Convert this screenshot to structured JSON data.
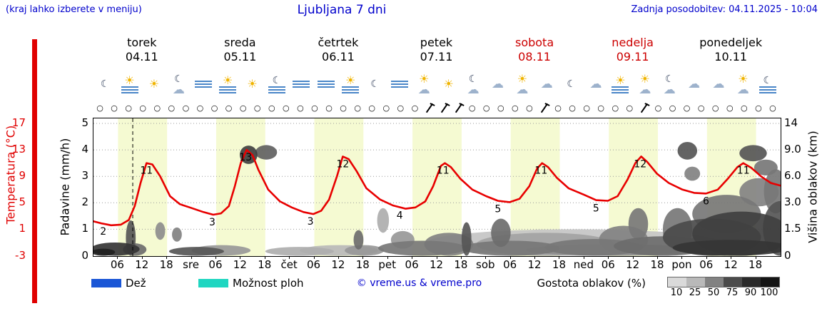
{
  "header": {
    "hint": "(kraj lahko izberete v meniju)",
    "title": "Ljubljana 7 dni",
    "updated": "Zadnja posodobitev: 04.11.2025 - 10:04"
  },
  "colors": {
    "accent_blue": "#0000cc",
    "red": "#cc0000",
    "temp_line": "#e80000",
    "day_band": "#f5fad2",
    "rain_legend": "#1a56d6",
    "showers_legend": "#1fd6c1"
  },
  "axes": {
    "temp_label": "Temperatura (°C)",
    "precip_label": "Padavine (mm/h)",
    "cloud_label": "Višina oblakov (km)",
    "temp_ticks": [
      "17",
      "13",
      "9",
      "5",
      "1",
      "-3"
    ],
    "precip_ticks": [
      "5",
      "4",
      "3",
      "2",
      "1",
      "0"
    ],
    "cloud_ticks": [
      "14",
      "9.0",
      "6.0",
      "3.0",
      "1.5",
      "0"
    ]
  },
  "days": [
    {
      "name": "torek",
      "date": "04.11",
      "highlight": false
    },
    {
      "name": "sreda",
      "date": "05.11",
      "highlight": false
    },
    {
      "name": "četrtek",
      "date": "06.11",
      "highlight": false
    },
    {
      "name": "petek",
      "date": "07.11",
      "highlight": false
    },
    {
      "name": "sobota",
      "date": "08.11",
      "highlight": true
    },
    {
      "name": "nedelja",
      "date": "09.11",
      "highlight": true
    },
    {
      "name": "ponedeljek",
      "date": "10.11",
      "highlight": false
    }
  ],
  "icons": [
    "moon",
    "fog-sun",
    "sun",
    "moon-cloud",
    "fog",
    "fog-sun",
    "sun",
    "fog-moon",
    "fog",
    "fog",
    "fog-sun",
    "moon",
    "fog",
    "cloud-sun",
    "sun",
    "moon-cloud",
    "cloud",
    "cloud-sun",
    "cloud",
    "moon",
    "cloud",
    "fog-sun",
    "sun-cloud",
    "moon-cloud",
    "cloud",
    "cloud",
    "cloud-sun",
    "fog-moon"
  ],
  "wind": {
    "count": 48,
    "barb_indices": [
      23,
      24,
      25,
      31,
      38
    ]
  },
  "x_axis": {
    "hour_labels": [
      "06",
      "12",
      "18"
    ],
    "boundary_labels": [
      "sre",
      "čet",
      "pet",
      "sob",
      "ned",
      "pon"
    ]
  },
  "legend": {
    "rain": "Dež",
    "showers": "Možnost ploh",
    "copyright": "© vreme.us & vreme.pro",
    "cloud_density": "Gostota oblakov (%)",
    "density_ticks": [
      "10",
      "25",
      "50",
      "75",
      "90",
      "100"
    ]
  },
  "chart_data": {
    "type": "line",
    "title": "Ljubljana 7 dni",
    "x_axis_unit": "days from 04.11 00:00, 7 days, ticks at 06/12/18 each day",
    "y_left_temperature": {
      "label": "Temperatura (°C)",
      "ticks": [
        17,
        13,
        9,
        5,
        1,
        -3
      ],
      "degC_per_gridline": 4
    },
    "y_left_precipitation": {
      "label": "Padavine (mm/h)",
      "ticks": [
        5,
        4,
        3,
        2,
        1,
        0
      ]
    },
    "y_right_cloud_height": {
      "label": "Višina oblakov (km)",
      "ticks": [
        14,
        9.0,
        6.0,
        3.0,
        1.5,
        0
      ],
      "km_scale": [
        0,
        1.5,
        3,
        6,
        9,
        14
      ]
    },
    "now_marker_day": 0.4,
    "daylight_band_hours": [
      6,
      18
    ],
    "temperature_series": {
      "name": "Temperatura",
      "color": "#e80000",
      "points": [
        [
          0,
          2.2
        ],
        [
          0.08,
          1.9
        ],
        [
          0.18,
          1.6
        ],
        [
          0.28,
          1.7
        ],
        [
          0.36,
          2.4
        ],
        [
          0.42,
          4.5
        ],
        [
          0.48,
          8
        ],
        [
          0.54,
          11
        ],
        [
          0.6,
          10.8
        ],
        [
          0.68,
          9
        ],
        [
          0.78,
          6
        ],
        [
          0.88,
          4.8
        ],
        [
          1,
          4.2
        ],
        [
          1.12,
          3.6
        ],
        [
          1.22,
          3.2
        ],
        [
          1.3,
          3.4
        ],
        [
          1.38,
          4.5
        ],
        [
          1.44,
          7.5
        ],
        [
          1.5,
          11
        ],
        [
          1.56,
          13
        ],
        [
          1.62,
          12.2
        ],
        [
          1.68,
          10
        ],
        [
          1.78,
          7
        ],
        [
          1.9,
          5.2
        ],
        [
          2.02,
          4.3
        ],
        [
          2.14,
          3.6
        ],
        [
          2.24,
          3.3
        ],
        [
          2.32,
          3.8
        ],
        [
          2.4,
          5.5
        ],
        [
          2.48,
          9
        ],
        [
          2.54,
          12
        ],
        [
          2.6,
          11.6
        ],
        [
          2.68,
          9.8
        ],
        [
          2.78,
          7.2
        ],
        [
          2.92,
          5.5
        ],
        [
          3.05,
          4.6
        ],
        [
          3.18,
          4.1
        ],
        [
          3.28,
          4.3
        ],
        [
          3.38,
          5.2
        ],
        [
          3.46,
          7.5
        ],
        [
          3.54,
          10.6
        ],
        [
          3.58,
          11
        ],
        [
          3.64,
          10.4
        ],
        [
          3.74,
          8.6
        ],
        [
          3.86,
          7
        ],
        [
          4,
          6
        ],
        [
          4.12,
          5.3
        ],
        [
          4.24,
          5.1
        ],
        [
          4.34,
          5.6
        ],
        [
          4.44,
          7.5
        ],
        [
          4.52,
          10.2
        ],
        [
          4.57,
          11
        ],
        [
          4.63,
          10.4
        ],
        [
          4.72,
          8.8
        ],
        [
          4.84,
          7.2
        ],
        [
          5,
          6.2
        ],
        [
          5.12,
          5.4
        ],
        [
          5.24,
          5.3
        ],
        [
          5.34,
          6
        ],
        [
          5.44,
          8.5
        ],
        [
          5.52,
          11
        ],
        [
          5.58,
          12
        ],
        [
          5.64,
          11.2
        ],
        [
          5.74,
          9.4
        ],
        [
          5.86,
          8
        ],
        [
          6,
          7
        ],
        [
          6.12,
          6.5
        ],
        [
          6.24,
          6.4
        ],
        [
          6.36,
          7
        ],
        [
          6.46,
          8.6
        ],
        [
          6.56,
          10.4
        ],
        [
          6.62,
          11
        ],
        [
          6.7,
          10.3
        ],
        [
          6.8,
          9
        ],
        [
          6.9,
          8
        ],
        [
          7,
          7.6
        ]
      ]
    },
    "temperature_point_labels": [
      {
        "day": 0.1,
        "t": 1.8,
        "text": "2"
      },
      {
        "day": 0.54,
        "t": 11,
        "text": "11"
      },
      {
        "day": 1.21,
        "t": 3.2,
        "text": "3"
      },
      {
        "day": 1.55,
        "t": 13,
        "text": "13"
      },
      {
        "day": 2.21,
        "t": 3.3,
        "text": "3"
      },
      {
        "day": 2.54,
        "t": 12,
        "text": "12"
      },
      {
        "day": 3.12,
        "t": 4.2,
        "text": "4"
      },
      {
        "day": 3.56,
        "t": 11,
        "text": "11"
      },
      {
        "day": 4.12,
        "t": 5.2,
        "text": "5"
      },
      {
        "day": 4.56,
        "t": 11,
        "text": "11"
      },
      {
        "day": 5.12,
        "t": 5.3,
        "text": "5"
      },
      {
        "day": 5.57,
        "t": 12,
        "text": "12"
      },
      {
        "day": 6.24,
        "t": 6.4,
        "text": "6"
      },
      {
        "day": 6.62,
        "t": 11,
        "text": "11"
      }
    ],
    "cloud_blobs": [
      {
        "day": 0.1,
        "km": 0.15,
        "rday": 0.12,
        "rkm": 0.25,
        "density": 95
      },
      {
        "day": 0.22,
        "km": 0.3,
        "rday": 0.25,
        "rkm": 0.45,
        "density": 85
      },
      {
        "day": 0.38,
        "km": 1.0,
        "rday": 0.05,
        "rkm": 1.0,
        "density": 70
      },
      {
        "day": 0.42,
        "km": 0.3,
        "rday": 0.12,
        "rkm": 0.4,
        "density": 60
      },
      {
        "day": 0.68,
        "km": 1.4,
        "rday": 0.05,
        "rkm": 0.5,
        "density": 45
      },
      {
        "day": 0.85,
        "km": 1.2,
        "rday": 0.05,
        "rkm": 0.4,
        "density": 50
      },
      {
        "day": 1.05,
        "km": 0.2,
        "rday": 0.28,
        "rkm": 0.3,
        "density": 70
      },
      {
        "day": 1.3,
        "km": 0.25,
        "rday": 0.3,
        "rkm": 0.35,
        "density": 40
      },
      {
        "day": 1.58,
        "km": 8.6,
        "rday": 0.09,
        "rkm": 1.2,
        "density": 80
      },
      {
        "day": 1.76,
        "km": 8.9,
        "rday": 0.11,
        "rkm": 1.0,
        "density": 65
      },
      {
        "day": 2.1,
        "km": 0.2,
        "rday": 0.35,
        "rkm": 0.3,
        "density": 30
      },
      {
        "day": 2.5,
        "km": 0.25,
        "rday": 0.4,
        "rkm": 0.35,
        "density": 25
      },
      {
        "day": 2.7,
        "km": 0.9,
        "rday": 0.05,
        "rkm": 0.55,
        "density": 60
      },
      {
        "day": 2.76,
        "km": 0.3,
        "rday": 0.2,
        "rkm": 0.3,
        "density": 40
      },
      {
        "day": 2.95,
        "km": 2.0,
        "rday": 0.06,
        "rkm": 0.7,
        "density": 30
      },
      {
        "day": 3.15,
        "km": 0.9,
        "rday": 0.12,
        "rkm": 0.5,
        "density": 40
      },
      {
        "day": 3.35,
        "km": 0.35,
        "rday": 0.45,
        "rkm": 0.5,
        "density": 55
      },
      {
        "day": 3.62,
        "km": 0.6,
        "rday": 0.25,
        "rkm": 0.7,
        "density": 50
      },
      {
        "day": 3.8,
        "km": 0.9,
        "rday": 0.05,
        "rkm": 1.0,
        "density": 70
      },
      {
        "day": 4.25,
        "km": 0.35,
        "rday": 0.5,
        "rkm": 0.5,
        "density": 55
      },
      {
        "day": 4.15,
        "km": 1.3,
        "rday": 0.1,
        "rkm": 0.8,
        "density": 60
      },
      {
        "day": 4.6,
        "km": 0.6,
        "rday": 0.7,
        "rkm": 0.7,
        "density": 35
      },
      {
        "day": 4.9,
        "km": 0.7,
        "rday": 1.5,
        "rkm": 0.8,
        "density": 20
      },
      {
        "day": 5.1,
        "km": 0.4,
        "rday": 0.5,
        "rkm": 0.55,
        "density": 55
      },
      {
        "day": 5.3,
        "km": 0.25,
        "rday": 0.9,
        "rkm": 0.4,
        "density": 45
      },
      {
        "day": 5.4,
        "km": 0.9,
        "rday": 0.25,
        "rkm": 0.8,
        "density": 50
      },
      {
        "day": 5.55,
        "km": 1.8,
        "rday": 0.1,
        "rkm": 0.9,
        "density": 55
      },
      {
        "day": 5.8,
        "km": 0.5,
        "rday": 0.5,
        "rkm": 0.6,
        "density": 60
      },
      {
        "day": 5.95,
        "km": 1.5,
        "rday": 0.15,
        "rkm": 1.2,
        "density": 55
      },
      {
        "day": 6.05,
        "km": 9.2,
        "rday": 0.1,
        "rkm": 1.3,
        "density": 70
      },
      {
        "day": 6.1,
        "km": 6.3,
        "rday": 0.08,
        "rkm": 0.8,
        "density": 50
      },
      {
        "day": 6.3,
        "km": 1.0,
        "rday": 0.5,
        "rkm": 1.1,
        "density": 75
      },
      {
        "day": 6.45,
        "km": 2.6,
        "rday": 0.35,
        "rkm": 1.3,
        "density": 55
      },
      {
        "day": 6.5,
        "km": 0.4,
        "rday": 0.6,
        "rkm": 0.5,
        "density": 85
      },
      {
        "day": 6.6,
        "km": 1.2,
        "rday": 0.5,
        "rkm": 1.3,
        "density": 80
      },
      {
        "day": 6.72,
        "km": 8.8,
        "rday": 0.14,
        "rkm": 1.1,
        "density": 70
      },
      {
        "day": 6.85,
        "km": 7.0,
        "rday": 0.12,
        "rkm": 0.9,
        "density": 55
      },
      {
        "day": 6.78,
        "km": 4.3,
        "rday": 0.2,
        "rkm": 1.5,
        "density": 50
      },
      {
        "day": 6.95,
        "km": 4.6,
        "rday": 0.12,
        "rkm": 2.2,
        "density": 55
      },
      {
        "day": 7.0,
        "km": 1.6,
        "rday": 0.18,
        "rkm": 1.6,
        "density": 70
      }
    ]
  }
}
